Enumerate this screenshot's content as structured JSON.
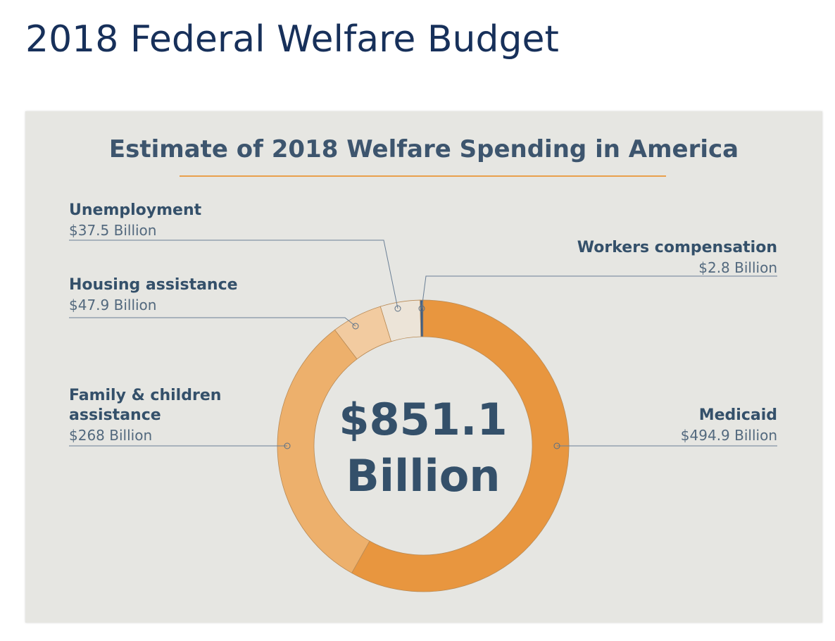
{
  "page_title": "2018 Federal Welfare Budget",
  "chart_data": {
    "type": "donut",
    "title": "Estimate of 2018 Welfare Spending in America",
    "center_label": "$851.1 Billion",
    "categories": [
      "Medicaid",
      "Family & children assistance",
      "Housing assistance",
      "Unemployment",
      "Workers compensation"
    ],
    "values": [
      494.9,
      268,
      47.9,
      37.5,
      2.8
    ],
    "value_labels": [
      "$494.9 Billion",
      "$268 Billion",
      "$47.9 Billion",
      "$37.5 Billion",
      "$2.8 Billion"
    ],
    "colors": [
      "#e8963f",
      "#edb06c",
      "#f2cba0",
      "#ece4d8",
      "#3f5f86"
    ]
  }
}
